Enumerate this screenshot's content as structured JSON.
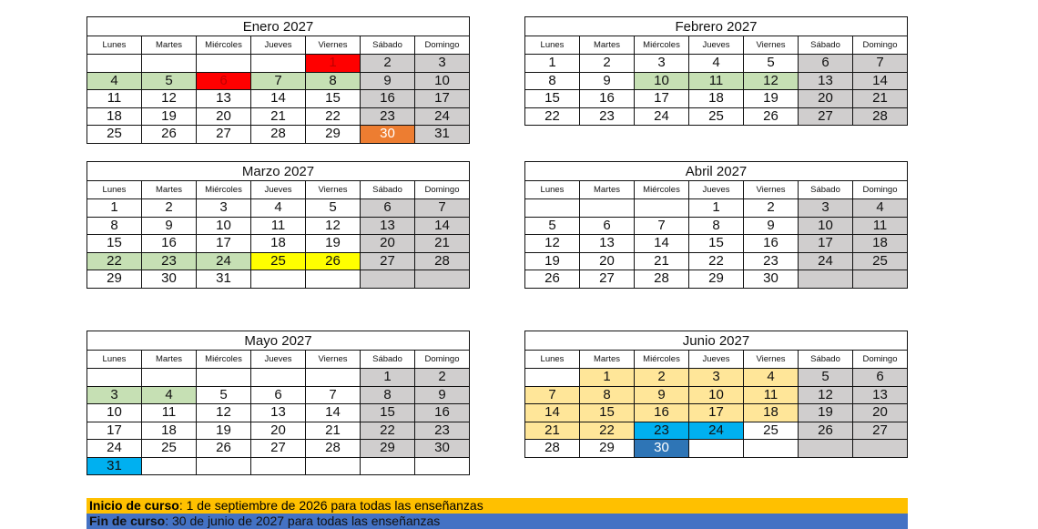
{
  "weekday_headers": [
    "Lunes",
    "Martes",
    "Miércoles",
    "Jueves",
    "Viernes",
    "Sábado",
    "Domingo"
  ],
  "colors": {
    "weekend": "#d0cece",
    "holiday": "#ff0000",
    "holiday_text": "#c00000",
    "green": "#c6e0b4",
    "orange": "#ed7d31",
    "yellow": "#ffff00",
    "light_orange": "#ffe699",
    "blue": "#00b0f0",
    "dark_blue": "#2e75b6",
    "legend_start": "#ffc000",
    "legend_end": "#4472c4"
  },
  "months": [
    {
      "title": "Enero 2027",
      "gray_empty_weekend": false,
      "weeks": [
        [
          null,
          null,
          null,
          null,
          "1",
          "2",
          "3"
        ],
        [
          "4",
          "5",
          "6",
          "7",
          "8",
          "9",
          "10"
        ],
        [
          "11",
          "12",
          "13",
          "14",
          "15",
          "16",
          "17"
        ],
        [
          "18",
          "19",
          "20",
          "21",
          "22",
          "23",
          "24"
        ],
        [
          "25",
          "26",
          "27",
          "28",
          "29",
          "30",
          "31"
        ]
      ],
      "marks": {
        "1": "holiday",
        "6": "holiday",
        "4": "green",
        "5": "green",
        "7": "green",
        "8": "green",
        "30": "orange"
      }
    },
    {
      "title": "Febrero 2027",
      "gray_empty_weekend": false,
      "weeks": [
        [
          "1",
          "2",
          "3",
          "4",
          "5",
          "6",
          "7"
        ],
        [
          "8",
          "9",
          "10",
          "11",
          "12",
          "13",
          "14"
        ],
        [
          "15",
          "16",
          "17",
          "18",
          "19",
          "20",
          "21"
        ],
        [
          "22",
          "23",
          "24",
          "25",
          "26",
          "27",
          "28"
        ]
      ],
      "marks": {
        "10": "green",
        "11": "green",
        "12": "green"
      }
    },
    {
      "title": "Marzo 2027",
      "gray_empty_weekend": true,
      "weeks": [
        [
          "1",
          "2",
          "3",
          "4",
          "5",
          "6",
          "7"
        ],
        [
          "8",
          "9",
          "10",
          "11",
          "12",
          "13",
          "14"
        ],
        [
          "15",
          "16",
          "17",
          "18",
          "19",
          "20",
          "21"
        ],
        [
          "22",
          "23",
          "24",
          "25",
          "26",
          "27",
          "28"
        ],
        [
          "29",
          "30",
          "31",
          null,
          null,
          null,
          null
        ]
      ],
      "marks": {
        "22": "green",
        "23": "green",
        "24": "green",
        "25": "yellow",
        "26": "yellow"
      }
    },
    {
      "title": "Abril 2027",
      "gray_empty_weekend": true,
      "weeks": [
        [
          null,
          null,
          null,
          "1",
          "2",
          "3",
          "4"
        ],
        [
          "5",
          "6",
          "7",
          "8",
          "9",
          "10",
          "11"
        ],
        [
          "12",
          "13",
          "14",
          "15",
          "16",
          "17",
          "18"
        ],
        [
          "19",
          "20",
          "21",
          "22",
          "23",
          "24",
          "25"
        ],
        [
          "26",
          "27",
          "28",
          "29",
          "30",
          null,
          null
        ]
      ],
      "marks": {}
    },
    {
      "title": "Mayo 2027",
      "gray_empty_weekend": false,
      "weeks": [
        [
          null,
          null,
          null,
          null,
          null,
          "1",
          "2"
        ],
        [
          "3",
          "4",
          "5",
          "6",
          "7",
          "8",
          "9"
        ],
        [
          "10",
          "11",
          "12",
          "13",
          "14",
          "15",
          "16"
        ],
        [
          "17",
          "18",
          "19",
          "20",
          "21",
          "22",
          "23"
        ],
        [
          "24",
          "25",
          "26",
          "27",
          "28",
          "29",
          "30"
        ],
        [
          "31",
          null,
          null,
          null,
          null,
          null,
          null
        ]
      ],
      "marks": {
        "3": "green",
        "4": "green",
        "31": "blue"
      }
    },
    {
      "title": "Junio 2027",
      "gray_empty_weekend": true,
      "weeks": [
        [
          null,
          "1",
          "2",
          "3",
          "4",
          "5",
          "6"
        ],
        [
          "7",
          "8",
          "9",
          "10",
          "11",
          "12",
          "13"
        ],
        [
          "14",
          "15",
          "16",
          "17",
          "18",
          "19",
          "20"
        ],
        [
          "21",
          "22",
          "23",
          "24",
          "25",
          "26",
          "27"
        ],
        [
          "28",
          "29",
          "30",
          null,
          null,
          null,
          null
        ]
      ],
      "marks": {
        "1": "light_orange",
        "2": "light_orange",
        "3": "light_orange",
        "4": "light_orange",
        "7": "light_orange",
        "8": "light_orange",
        "9": "light_orange",
        "10": "light_orange",
        "11": "light_orange",
        "14": "light_orange",
        "15": "light_orange",
        "16": "light_orange",
        "17": "light_orange",
        "18": "light_orange",
        "21": "light_orange",
        "22": "light_orange",
        "23": "blue",
        "24": "blue",
        "30": "dark_blue"
      }
    }
  ],
  "legend": {
    "start_label": "Inicio de curso",
    "start_text": ": 1 de septiembre de 2026 para todas las enseñanzas",
    "end_label": "Fin de curso",
    "end_text": ": 30 de junio de 2027 para todas las enseñanzas"
  }
}
